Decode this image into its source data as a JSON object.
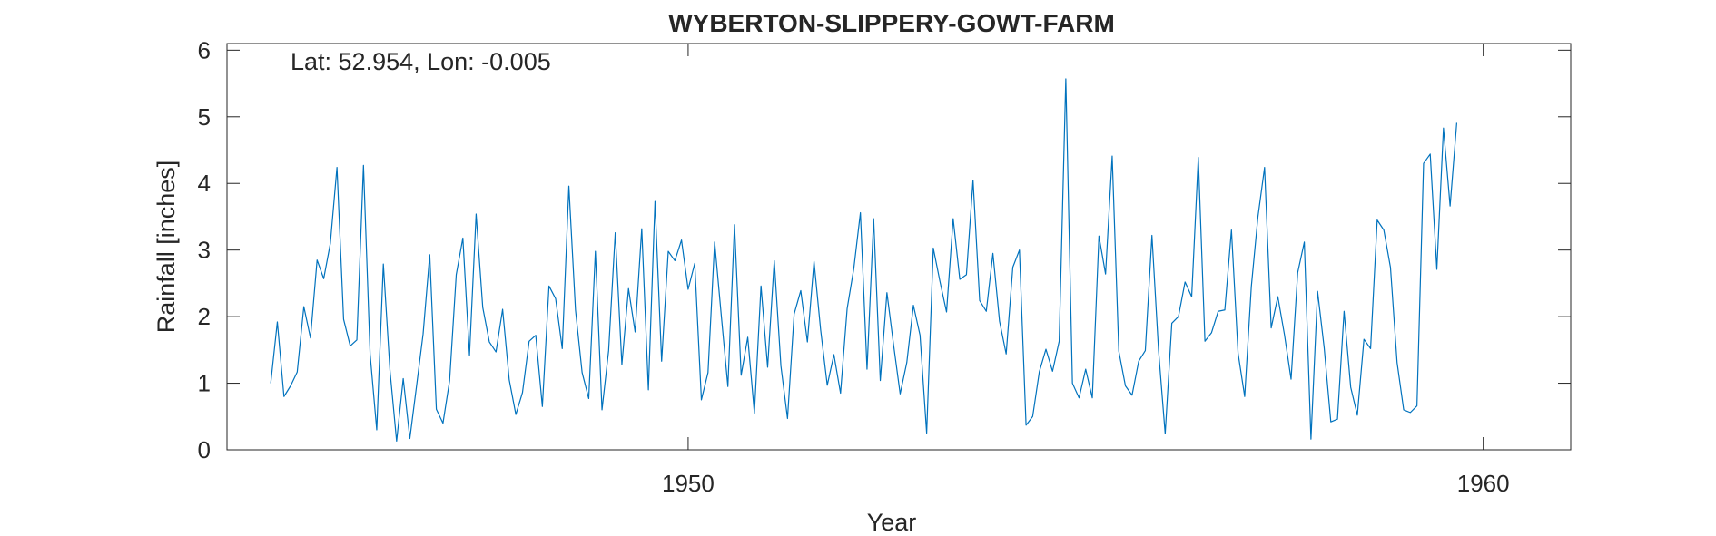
{
  "chart_data": {
    "type": "line",
    "title": "WYBERTON-SLIPPERY-GOWT-FARM",
    "annotation": "Lat: 52.954, Lon: -0.005",
    "xlabel": "Year",
    "ylabel": "Rainfall [inches]",
    "xlim": [
      1944.2,
      1961.1
    ],
    "ylim": [
      0,
      6.1
    ],
    "xticks": [
      1950,
      1960
    ],
    "yticks": [
      0,
      1,
      2,
      3,
      4,
      5,
      6
    ],
    "grid": false,
    "line_color": "#0072BD",
    "series": [
      {
        "start_year": 1944.75,
        "step_years": 0.08333,
        "values": [
          1.0,
          1.92,
          0.8,
          0.96,
          1.17,
          2.15,
          1.68,
          2.85,
          2.57,
          3.1,
          4.24,
          1.96,
          1.56,
          1.65,
          4.27,
          1.44,
          0.3,
          2.79,
          1.19,
          0.13,
          1.07,
          0.17,
          0.95,
          1.74,
          2.93,
          0.61,
          0.4,
          1.04,
          2.63,
          3.18,
          1.42,
          3.54,
          2.14,
          1.62,
          1.47,
          2.11,
          1.05,
          0.53,
          0.86,
          1.63,
          1.72,
          0.65,
          2.46,
          2.27,
          1.52,
          3.96,
          2.1,
          1.16,
          0.77,
          2.98,
          0.6,
          1.49,
          3.26,
          1.28,
          2.42,
          1.77,
          3.32,
          0.9,
          3.73,
          1.33,
          2.98,
          2.84,
          3.15,
          2.41,
          2.8,
          0.75,
          1.16,
          3.12,
          2.02,
          0.95,
          3.38,
          1.12,
          1.69,
          0.55,
          2.46,
          1.24,
          2.84,
          1.26,
          0.47,
          2.04,
          2.39,
          1.62,
          2.83,
          1.8,
          0.97,
          1.43,
          0.85,
          2.12,
          2.72,
          3.56,
          1.21,
          3.47,
          1.04,
          2.36,
          1.58,
          0.84,
          1.31,
          2.17,
          1.72,
          0.25,
          3.03,
          2.53,
          2.07,
          3.47,
          2.56,
          2.63,
          4.05,
          2.24,
          2.08,
          2.95,
          1.93,
          1.44,
          2.74,
          3.0,
          0.37,
          0.5,
          1.17,
          1.51,
          1.18,
          1.63,
          5.57,
          1.0,
          0.78,
          1.21,
          0.78,
          3.21,
          2.64,
          4.41,
          1.48,
          0.96,
          0.82,
          1.33,
          1.49,
          3.22,
          1.49,
          0.24,
          1.9,
          2.0,
          2.52,
          2.3,
          4.39,
          1.63,
          1.76,
          2.08,
          2.1,
          3.3,
          1.45,
          0.8,
          2.45,
          3.5,
          4.24,
          1.83,
          2.3,
          1.73,
          1.06,
          2.66,
          3.12,
          0.16,
          2.38,
          1.53,
          0.42,
          0.46,
          2.08,
          0.94,
          0.52,
          1.66,
          1.52,
          3.45,
          3.3,
          2.74,
          1.31,
          0.6,
          0.56,
          0.66,
          4.3,
          4.44,
          2.71,
          4.83,
          3.66,
          4.91
        ]
      }
    ]
  }
}
